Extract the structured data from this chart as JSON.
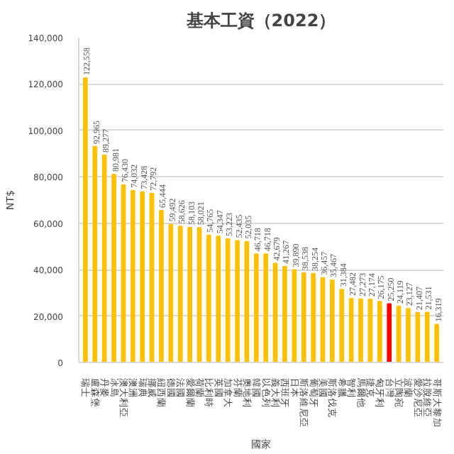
{
  "chart_data": {
    "type": "bar",
    "title": "基本工資（2022）",
    "xlabel": "國家",
    "ylabel": "NT$",
    "categories": [
      "瑞士",
      "盧森堡",
      "丹麥",
      "冰島",
      "澳大利亞",
      "澳洲",
      "瑞典",
      "挪威",
      "紐西蘭",
      "德國",
      "法國",
      "愛爾蘭",
      "荷蘭",
      "比利時",
      "英國",
      "加拿大",
      "芬蘭",
      "奧地利",
      "韓國",
      "以色列",
      "義大利",
      "西班牙",
      "日本",
      "斯洛維尼亞",
      "葡萄牙",
      "美國",
      "斯洛伐克",
      "希臘",
      "智利",
      "馬爾他",
      "捷克",
      "匈牙利",
      "台灣",
      "立陶宛",
      "波蘭",
      "愛沙尼亞",
      "拉脫維亞",
      "哥斯大黎加"
    ],
    "values": [
      122558,
      92965,
      89277,
      80981,
      76430,
      74032,
      73428,
      72792,
      65444,
      59492,
      58626,
      58103,
      58021,
      54765,
      54347,
      53223,
      52435,
      52035,
      46718,
      46718,
      42679,
      41267,
      39890,
      38538,
      38254,
      36457,
      35467,
      31384,
      27482,
      27273,
      27174,
      26175,
      25250,
      24119,
      23127,
      21407,
      21531,
      16319
    ],
    "colors": [
      "#ffc000",
      "#ffc000",
      "#ffc000",
      "#ffc000",
      "#ffc000",
      "#ffc000",
      "#ffc000",
      "#ffc000",
      "#ffc000",
      "#ffc000",
      "#ffc000",
      "#ffc000",
      "#ffc000",
      "#ffc000",
      "#ffc000",
      "#ffc000",
      "#ffc000",
      "#ffc000",
      "#ffc000",
      "#ffc000",
      "#ffc000",
      "#ffc000",
      "#ffc000",
      "#ffc000",
      "#ffc000",
      "#ffc000",
      "#ffc000",
      "#ffc000",
      "#ffc000",
      "#ffc000",
      "#ffc000",
      "#ffc000",
      "#ff0000",
      "#ffc000",
      "#ffc000",
      "#ffc000",
      "#ffc000",
      "#ffc000"
    ],
    "ylim": [
      0,
      140000
    ],
    "yticks": [
      {
        "value": 0,
        "label": "0"
      },
      {
        "value": 20000,
        "label": "20,000"
      },
      {
        "value": 40000,
        "label": "40,000"
      },
      {
        "value": 60000,
        "label": "60,000"
      },
      {
        "value": 80000,
        "label": "80,000"
      },
      {
        "value": 100000,
        "label": "100,000"
      },
      {
        "value": 120000,
        "label": "120,000"
      },
      {
        "value": 140000,
        "label": "140,000"
      }
    ],
    "value_labels": [
      "122,558",
      "92,965",
      "89,277",
      "80,981",
      "76,430",
      "74,032",
      "73,428",
      "72,792",
      "65,444",
      "59,492",
      "58,626",
      "58,103",
      "58,021",
      "54,765",
      "54,347",
      "53,223",
      "52,435",
      "52,035",
      "46,718",
      "46,718",
      "42,679",
      "41,267",
      "39,890",
      "38,538",
      "38,254",
      "36,457",
      "35,467",
      "31,384",
      "27,482",
      "27,273",
      "27,174",
      "26,175",
      "25,250",
      "24,119",
      "23,127",
      "21,407",
      "21,531",
      "16,319"
    ],
    "grid": "y"
  }
}
